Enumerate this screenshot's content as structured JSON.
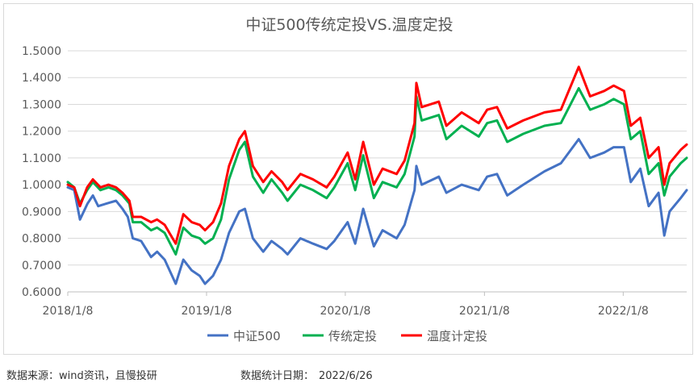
{
  "chart_data": {
    "type": "line",
    "title": "中证500传统定投VS.温度定投",
    "xlabel": "",
    "ylabel": "",
    "x_start": "2018-01-08",
    "x_end": "2022-06-24",
    "x_tick_labels": [
      "2018/1/8",
      "2019/1/8",
      "2020/1/8",
      "2021/1/8",
      "2022/1/8"
    ],
    "ylim": [
      0.6,
      1.5
    ],
    "y_tick_labels": [
      "0.6000",
      "0.7000",
      "0.8000",
      "0.9000",
      "1.0000",
      "1.1000",
      "1.2000",
      "1.3000",
      "1.4000",
      "1.5000"
    ],
    "grid": "horizontal",
    "legend_position": "bottom",
    "series": [
      {
        "name": "中证500",
        "color": "#4472C4",
        "points": [
          [
            "2018-01-08",
            0.99
          ],
          [
            "2018-01-25",
            0.98
          ],
          [
            "2018-02-09",
            0.87
          ],
          [
            "2018-03-01",
            0.93
          ],
          [
            "2018-03-15",
            0.96
          ],
          [
            "2018-03-29",
            0.92
          ],
          [
            "2018-04-20",
            0.93
          ],
          [
            "2018-05-15",
            0.94
          ],
          [
            "2018-06-01",
            0.91
          ],
          [
            "2018-06-15",
            0.88
          ],
          [
            "2018-06-28",
            0.8
          ],
          [
            "2018-07-20",
            0.79
          ],
          [
            "2018-08-15",
            0.73
          ],
          [
            "2018-08-31",
            0.75
          ],
          [
            "2018-09-20",
            0.72
          ],
          [
            "2018-10-19",
            0.63
          ],
          [
            "2018-11-08",
            0.72
          ],
          [
            "2018-11-30",
            0.68
          ],
          [
            "2018-12-21",
            0.66
          ],
          [
            "2019-01-04",
            0.63
          ],
          [
            "2019-01-25",
            0.66
          ],
          [
            "2019-02-15",
            0.72
          ],
          [
            "2019-03-08",
            0.82
          ],
          [
            "2019-04-04",
            0.9
          ],
          [
            "2019-04-19",
            0.91
          ],
          [
            "2019-05-10",
            0.8
          ],
          [
            "2019-06-06",
            0.75
          ],
          [
            "2019-06-28",
            0.79
          ],
          [
            "2019-07-26",
            0.76
          ],
          [
            "2019-08-09",
            0.74
          ],
          [
            "2019-09-12",
            0.8
          ],
          [
            "2019-10-15",
            0.78
          ],
          [
            "2019-11-20",
            0.76
          ],
          [
            "2019-12-10",
            0.79
          ],
          [
            "2020-01-14",
            0.86
          ],
          [
            "2020-02-03",
            0.78
          ],
          [
            "2020-02-24",
            0.91
          ],
          [
            "2020-03-23",
            0.77
          ],
          [
            "2020-04-15",
            0.83
          ],
          [
            "2020-05-22",
            0.8
          ],
          [
            "2020-06-12",
            0.85
          ],
          [
            "2020-07-08",
            0.98
          ],
          [
            "2020-07-13",
            1.07
          ],
          [
            "2020-07-27",
            1.0
          ],
          [
            "2020-09-10",
            1.03
          ],
          [
            "2020-09-30",
            0.97
          ],
          [
            "2020-11-09",
            1.0
          ],
          [
            "2020-12-24",
            0.98
          ],
          [
            "2021-01-15",
            1.03
          ],
          [
            "2021-02-10",
            1.04
          ],
          [
            "2021-03-09",
            0.96
          ],
          [
            "2021-04-20",
            1.0
          ],
          [
            "2021-06-15",
            1.05
          ],
          [
            "2021-07-28",
            1.08
          ],
          [
            "2021-09-13",
            1.17
          ],
          [
            "2021-10-13",
            1.1
          ],
          [
            "2021-11-19",
            1.12
          ],
          [
            "2021-12-14",
            1.14
          ],
          [
            "2022-01-10",
            1.14
          ],
          [
            "2022-01-28",
            1.01
          ],
          [
            "2022-02-22",
            1.06
          ],
          [
            "2022-03-16",
            0.92
          ],
          [
            "2022-04-11",
            0.97
          ],
          [
            "2022-04-26",
            0.81
          ],
          [
            "2022-05-10",
            0.9
          ],
          [
            "2022-06-08",
            0.95
          ],
          [
            "2022-06-24",
            0.98
          ]
        ]
      },
      {
        "name": "传统定投",
        "color": "#00B050",
        "points": [
          [
            "2018-01-08",
            1.01
          ],
          [
            "2018-01-25",
            0.99
          ],
          [
            "2018-02-09",
            0.93
          ],
          [
            "2018-02-28",
            0.98
          ],
          [
            "2018-03-15",
            1.01
          ],
          [
            "2018-04-04",
            0.98
          ],
          [
            "2018-04-25",
            0.99
          ],
          [
            "2018-05-15",
            0.98
          ],
          [
            "2018-06-01",
            0.96
          ],
          [
            "2018-06-19",
            0.93
          ],
          [
            "2018-06-28",
            0.86
          ],
          [
            "2018-07-20",
            0.86
          ],
          [
            "2018-08-15",
            0.83
          ],
          [
            "2018-08-31",
            0.84
          ],
          [
            "2018-09-20",
            0.82
          ],
          [
            "2018-10-19",
            0.74
          ],
          [
            "2018-11-08",
            0.84
          ],
          [
            "2018-11-30",
            0.81
          ],
          [
            "2018-12-21",
            0.8
          ],
          [
            "2019-01-04",
            0.78
          ],
          [
            "2019-01-25",
            0.8
          ],
          [
            "2019-02-15",
            0.87
          ],
          [
            "2019-03-08",
            1.02
          ],
          [
            "2019-04-04",
            1.13
          ],
          [
            "2019-04-19",
            1.16
          ],
          [
            "2019-05-10",
            1.03
          ],
          [
            "2019-06-06",
            0.97
          ],
          [
            "2019-06-28",
            1.02
          ],
          [
            "2019-07-26",
            0.97
          ],
          [
            "2019-08-09",
            0.94
          ],
          [
            "2019-09-12",
            1.0
          ],
          [
            "2019-10-15",
            0.98
          ],
          [
            "2019-11-20",
            0.95
          ],
          [
            "2019-12-10",
            0.99
          ],
          [
            "2020-01-14",
            1.08
          ],
          [
            "2020-02-03",
            0.98
          ],
          [
            "2020-02-24",
            1.11
          ],
          [
            "2020-03-23",
            0.95
          ],
          [
            "2020-04-15",
            1.01
          ],
          [
            "2020-05-22",
            0.99
          ],
          [
            "2020-06-12",
            1.04
          ],
          [
            "2020-07-08",
            1.18
          ],
          [
            "2020-07-13",
            1.33
          ],
          [
            "2020-07-27",
            1.24
          ],
          [
            "2020-09-10",
            1.26
          ],
          [
            "2020-09-30",
            1.17
          ],
          [
            "2020-11-09",
            1.22
          ],
          [
            "2020-12-24",
            1.18
          ],
          [
            "2021-01-15",
            1.23
          ],
          [
            "2021-02-10",
            1.24
          ],
          [
            "2021-03-09",
            1.16
          ],
          [
            "2021-04-20",
            1.19
          ],
          [
            "2021-06-15",
            1.22
          ],
          [
            "2021-07-28",
            1.23
          ],
          [
            "2021-09-13",
            1.36
          ],
          [
            "2021-10-13",
            1.28
          ],
          [
            "2021-11-19",
            1.3
          ],
          [
            "2021-12-14",
            1.32
          ],
          [
            "2022-01-10",
            1.3
          ],
          [
            "2022-01-28",
            1.17
          ],
          [
            "2022-02-22",
            1.2
          ],
          [
            "2022-03-16",
            1.04
          ],
          [
            "2022-04-11",
            1.08
          ],
          [
            "2022-04-26",
            0.96
          ],
          [
            "2022-05-10",
            1.03
          ],
          [
            "2022-06-08",
            1.08
          ],
          [
            "2022-06-24",
            1.1
          ]
        ]
      },
      {
        "name": "温度计定投",
        "color": "#FF0000",
        "points": [
          [
            "2018-01-08",
            1.0
          ],
          [
            "2018-01-25",
            0.99
          ],
          [
            "2018-02-09",
            0.92
          ],
          [
            "2018-02-28",
            0.99
          ],
          [
            "2018-03-15",
            1.02
          ],
          [
            "2018-04-04",
            0.99
          ],
          [
            "2018-04-25",
            1.0
          ],
          [
            "2018-05-15",
            0.99
          ],
          [
            "2018-06-01",
            0.97
          ],
          [
            "2018-06-19",
            0.94
          ],
          [
            "2018-06-28",
            0.88
          ],
          [
            "2018-07-20",
            0.88
          ],
          [
            "2018-08-15",
            0.86
          ],
          [
            "2018-08-31",
            0.87
          ],
          [
            "2018-09-20",
            0.85
          ],
          [
            "2018-10-19",
            0.78
          ],
          [
            "2018-11-08",
            0.89
          ],
          [
            "2018-11-30",
            0.86
          ],
          [
            "2018-12-21",
            0.85
          ],
          [
            "2019-01-04",
            0.83
          ],
          [
            "2019-01-25",
            0.86
          ],
          [
            "2019-02-15",
            0.93
          ],
          [
            "2019-03-08",
            1.07
          ],
          [
            "2019-04-04",
            1.17
          ],
          [
            "2019-04-19",
            1.2
          ],
          [
            "2019-05-10",
            1.07
          ],
          [
            "2019-06-06",
            1.01
          ],
          [
            "2019-06-28",
            1.05
          ],
          [
            "2019-07-26",
            1.01
          ],
          [
            "2019-08-09",
            0.98
          ],
          [
            "2019-09-12",
            1.04
          ],
          [
            "2019-10-15",
            1.02
          ],
          [
            "2019-11-20",
            0.99
          ],
          [
            "2019-12-10",
            1.03
          ],
          [
            "2020-01-14",
            1.12
          ],
          [
            "2020-02-03",
            1.02
          ],
          [
            "2020-02-24",
            1.16
          ],
          [
            "2020-03-23",
            1.0
          ],
          [
            "2020-04-15",
            1.06
          ],
          [
            "2020-05-22",
            1.04
          ],
          [
            "2020-06-12",
            1.09
          ],
          [
            "2020-07-08",
            1.23
          ],
          [
            "2020-07-13",
            1.38
          ],
          [
            "2020-07-27",
            1.29
          ],
          [
            "2020-09-10",
            1.31
          ],
          [
            "2020-09-30",
            1.22
          ],
          [
            "2020-11-09",
            1.27
          ],
          [
            "2020-12-24",
            1.23
          ],
          [
            "2021-01-15",
            1.28
          ],
          [
            "2021-02-10",
            1.29
          ],
          [
            "2021-03-09",
            1.21
          ],
          [
            "2021-04-20",
            1.24
          ],
          [
            "2021-06-15",
            1.27
          ],
          [
            "2021-07-28",
            1.28
          ],
          [
            "2021-09-13",
            1.44
          ],
          [
            "2021-10-13",
            1.33
          ],
          [
            "2021-11-19",
            1.35
          ],
          [
            "2021-12-14",
            1.37
          ],
          [
            "2022-01-10",
            1.35
          ],
          [
            "2022-01-28",
            1.22
          ],
          [
            "2022-02-22",
            1.25
          ],
          [
            "2022-03-16",
            1.1
          ],
          [
            "2022-04-11",
            1.14
          ],
          [
            "2022-04-26",
            1.0
          ],
          [
            "2022-05-10",
            1.08
          ],
          [
            "2022-06-08",
            1.13
          ],
          [
            "2022-06-24",
            1.15
          ]
        ]
      }
    ]
  },
  "footer": {
    "source": "数据来源：wind资讯，且慢投研",
    "stat_date_label": "数据统计日期：",
    "stat_date": "2022/6/26"
  }
}
